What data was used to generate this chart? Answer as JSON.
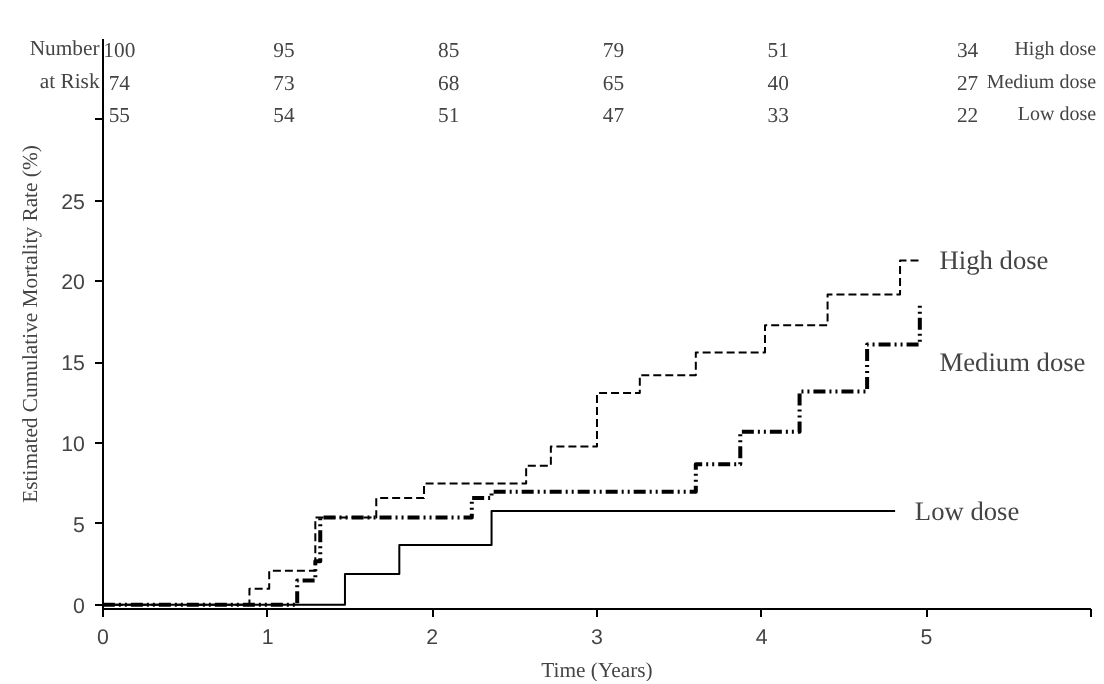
{
  "chart_data": {
    "type": "step",
    "xlabel": "Time (Years)",
    "ylabel": "Estimated Cumulative Mortality Rate (%)",
    "xlim": [
      0,
      6
    ],
    "xticks": [
      0,
      1,
      2,
      3,
      4,
      5,
      {
        "value": 6,
        "label": null
      }
    ],
    "ylim": [
      -0.3,
      35
    ],
    "yticks": [
      0,
      5,
      10,
      15,
      20,
      25,
      {
        "value": 30,
        "label": null
      }
    ],
    "grid": false,
    "annotations": [
      "Number",
      "at Risk",
      "100",
      "95",
      "85",
      "79",
      "51",
      "34",
      "High dose",
      "74",
      "73",
      "68",
      "65",
      "40",
      "27",
      "Medium dose",
      "55",
      "54",
      "51",
      "47",
      "33",
      "22",
      "Low dose"
    ],
    "series": [
      {
        "name": "High dose",
        "color": "#000000",
        "line_style": "dashed",
        "x": [
          0,
          0.89,
          1.01,
          1.29,
          1.66,
          1.95,
          2.57,
          2.72,
          3.0,
          3.26,
          3.6,
          4.02,
          4.4,
          4.84,
          4.96
        ],
        "values": [
          0,
          1.0,
          2.1,
          5.4,
          6.6,
          7.5,
          8.6,
          9.8,
          13.1,
          14.2,
          15.6,
          17.3,
          19.2,
          21.3,
          21.3
        ]
      },
      {
        "name": "Medium dose",
        "color": "#000000",
        "line_style": "dashdot",
        "x": [
          0,
          1.18,
          1.29,
          1.32,
          2.24,
          2.36,
          3.6,
          3.87,
          4.23,
          4.64,
          4.96
        ],
        "values": [
          0,
          1.5,
          2.7,
          5.4,
          6.6,
          7.0,
          8.7,
          10.7,
          13.2,
          16.1,
          18.6
        ]
      },
      {
        "name": "Low dose",
        "color": "#000000",
        "line_style": "solid",
        "x": [
          0,
          1.47,
          1.8,
          2.36,
          4.81
        ],
        "values": [
          0,
          1.9,
          3.7,
          5.8,
          5.8
        ]
      }
    ]
  }
}
